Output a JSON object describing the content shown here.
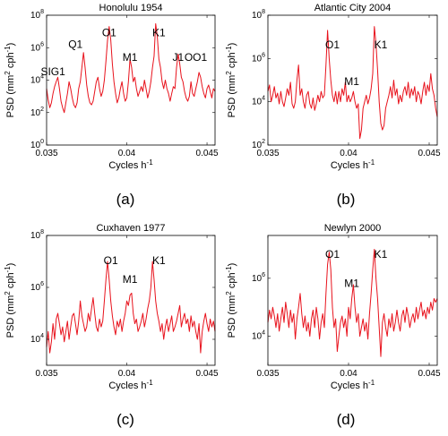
{
  "figure": {
    "panel_letters": [
      "(a)",
      "(b)",
      "(c)",
      "(d)"
    ]
  },
  "chart_data": [
    {
      "type": "line",
      "title": "Honolulu 1954",
      "xlabel": "Cycles h",
      "xlabel_sup": "-1",
      "ylabel": "PSD (mm",
      "ylabel_sup1": "2",
      "ylabel_mid": " cph",
      "ylabel_sup2": "-1",
      "ylabel_end": ")",
      "xlim": [
        0.035,
        0.0455
      ],
      "ylim": [
        1,
        100000000
      ],
      "yscale": "log",
      "xticks": [
        0.035,
        0.04,
        0.045
      ],
      "xtick_labels": [
        "0.035",
        "0.04",
        "0.045"
      ],
      "yticks": [
        1,
        100,
        10000,
        1000000,
        100000000
      ],
      "ytick_labels": [
        [
          "10",
          "0"
        ],
        [
          "10",
          "2"
        ],
        [
          "10",
          "4"
        ],
        [
          "10",
          "6"
        ],
        [
          "10",
          "8"
        ]
      ],
      "series_color": "#e8121c",
      "annotations": [
        {
          "text": "SIG1",
          "x": 0.0354,
          "y": 20000
        },
        {
          "text": "Q1",
          "x": 0.0368,
          "y": 1000000
        },
        {
          "text": "O1",
          "x": 0.0389,
          "y": 5000000
        },
        {
          "text": "M1",
          "x": 0.0402,
          "y": 150000
        },
        {
          "text": "K1",
          "x": 0.042,
          "y": 5000000
        },
        {
          "text": "J1",
          "x": 0.0432,
          "y": 150000
        },
        {
          "text": "OO1",
          "x": 0.0443,
          "y": 150000
        }
      ],
      "x": [
        0.035,
        0.0351,
        0.0352,
        0.0353,
        0.0354,
        0.0355,
        0.0356,
        0.0357,
        0.0358,
        0.0359,
        0.036,
        0.0361,
        0.0362,
        0.0363,
        0.0364,
        0.0365,
        0.0366,
        0.0367,
        0.0368,
        0.0369,
        0.037,
        0.0371,
        0.0372,
        0.0373,
        0.0374,
        0.0375,
        0.0376,
        0.0377,
        0.0378,
        0.0379,
        0.038,
        0.0381,
        0.0382,
        0.0383,
        0.0384,
        0.0385,
        0.0386,
        0.0387,
        0.0388,
        0.0389,
        0.039,
        0.0391,
        0.0392,
        0.0393,
        0.0394,
        0.0395,
        0.0396,
        0.0397,
        0.0398,
        0.0399,
        0.04,
        0.0401,
        0.0402,
        0.0403,
        0.0404,
        0.0405,
        0.0406,
        0.0407,
        0.0408,
        0.0409,
        0.041,
        0.0411,
        0.0412,
        0.0413,
        0.0414,
        0.0415,
        0.0416,
        0.0417,
        0.0418,
        0.0419,
        0.042,
        0.0421,
        0.0422,
        0.0423,
        0.0424,
        0.0425,
        0.0426,
        0.0427,
        0.0428,
        0.0429,
        0.043,
        0.0431,
        0.0432,
        0.0433,
        0.0434,
        0.0435,
        0.0436,
        0.0437,
        0.0438,
        0.0439,
        0.044,
        0.0441,
        0.0442,
        0.0443,
        0.0444,
        0.0445,
        0.0446,
        0.0447,
        0.0448,
        0.0449,
        0.045,
        0.0451,
        0.0452,
        0.0453,
        0.0454,
        0.0455
      ],
      "y": [
        3000,
        600,
        200,
        400,
        1500,
        4000,
        8000,
        15000,
        3000,
        500,
        200,
        100,
        400,
        1500,
        8000,
        3000,
        800,
        300,
        200,
        400,
        3000,
        8000,
        60000,
        500000,
        60000,
        5000,
        1000,
        400,
        300,
        500,
        2000,
        8000,
        15000,
        3000,
        1000,
        2000,
        10000,
        150000,
        3000000,
        20000000,
        3000000,
        100000,
        8000,
        1500,
        400,
        800,
        3000,
        8000,
        1500,
        500,
        800,
        8000,
        200000,
        60000,
        8000,
        15000,
        3000,
        1000,
        2000,
        4000,
        2000,
        10000,
        3000,
        800,
        2000,
        8000,
        60000,
        300000,
        30000000,
        5000000,
        200000,
        60000,
        8000,
        3000,
        10000,
        3000,
        1500,
        500,
        1500,
        4000,
        3000,
        60000,
        400000,
        100000,
        15000,
        8000,
        2000,
        800,
        500,
        1000,
        8000,
        1500,
        1000,
        3000,
        8000,
        30000,
        15000,
        4000,
        1500,
        800,
        3000,
        5000,
        2000,
        800,
        3000,
        2000
      ]
    },
    {
      "type": "line",
      "title": "Atlantic City 2004",
      "xlabel": "Cycles h",
      "xlabel_sup": "-1",
      "ylabel": "PSD (mm",
      "ylabel_sup1": "2",
      "ylabel_mid": " cph",
      "ylabel_sup2": "-1",
      "ylabel_end": ")",
      "xlim": [
        0.035,
        0.0455
      ],
      "ylim": [
        100,
        100000000
      ],
      "yscale": "log",
      "xticks": [
        0.035,
        0.04,
        0.045
      ],
      "xtick_labels": [
        "0.035",
        "0.04",
        "0.045"
      ],
      "yticks": [
        100,
        10000,
        1000000,
        100000000
      ],
      "ytick_labels": [
        [
          "10",
          "2"
        ],
        [
          "10",
          "4"
        ],
        [
          "10",
          "6"
        ],
        [
          "10",
          "8"
        ]
      ],
      "series_color": "#e8121c",
      "annotations": [
        {
          "text": "O1",
          "x": 0.039,
          "y": 3000000
        },
        {
          "text": "M1",
          "x": 0.0402,
          "y": 60000
        },
        {
          "text": "K1",
          "x": 0.042,
          "y": 3000000
        }
      ],
      "x": [
        0.035,
        0.0351,
        0.0352,
        0.0353,
        0.0354,
        0.0355,
        0.0356,
        0.0357,
        0.0358,
        0.0359,
        0.036,
        0.0361,
        0.0362,
        0.0363,
        0.0364,
        0.0365,
        0.0366,
        0.0367,
        0.0368,
        0.0369,
        0.037,
        0.0371,
        0.0372,
        0.0373,
        0.0374,
        0.0375,
        0.0376,
        0.0377,
        0.0378,
        0.0379,
        0.038,
        0.0381,
        0.0382,
        0.0383,
        0.0384,
        0.0385,
        0.0386,
        0.0387,
        0.0388,
        0.0389,
        0.039,
        0.0391,
        0.0392,
        0.0393,
        0.0394,
        0.0395,
        0.0396,
        0.0397,
        0.0398,
        0.0399,
        0.04,
        0.0401,
        0.0402,
        0.0403,
        0.0404,
        0.0405,
        0.0406,
        0.0407,
        0.0408,
        0.0409,
        0.041,
        0.0411,
        0.0412,
        0.0413,
        0.0414,
        0.0415,
        0.0416,
        0.0417,
        0.0418,
        0.0419,
        0.042,
        0.0421,
        0.0422,
        0.0423,
        0.0424,
        0.0425,
        0.0426,
        0.0427,
        0.0428,
        0.0429,
        0.043,
        0.0431,
        0.0432,
        0.0433,
        0.0434,
        0.0435,
        0.0436,
        0.0437,
        0.0438,
        0.0439,
        0.044,
        0.0441,
        0.0442,
        0.0443,
        0.0444,
        0.0445,
        0.0446,
        0.0447,
        0.0448,
        0.0449,
        0.045,
        0.0451,
        0.0452,
        0.0453,
        0.0454,
        0.0455
      ],
      "y": [
        30000,
        60000,
        10000,
        20000,
        50000,
        15000,
        25000,
        8000,
        30000,
        10000,
        6000,
        15000,
        40000,
        20000,
        80000,
        8000,
        5000,
        10000,
        100000,
        500000,
        20000,
        40000,
        10000,
        5000,
        20000,
        30000,
        8000,
        5000,
        15000,
        4000,
        8000,
        20000,
        10000,
        30000,
        15000,
        20000,
        500000,
        20000000,
        1000000,
        100000,
        20000,
        10000,
        30000,
        8000,
        30000,
        10000,
        40000,
        20000,
        80000,
        10000,
        20000,
        10000,
        15000,
        30000,
        10000,
        5000,
        8000,
        200,
        500,
        5000,
        10000,
        20000,
        8000,
        15000,
        40000,
        200000,
        30000000,
        5000000,
        300000,
        10000,
        1000,
        500,
        800,
        5000,
        10000,
        20000,
        50000,
        15000,
        100000,
        20000,
        40000,
        8000,
        20000,
        10000,
        30000,
        50000,
        20000,
        80000,
        15000,
        40000,
        20000,
        50000,
        10000,
        30000,
        20000,
        8000,
        30000,
        80000,
        20000,
        60000,
        30000,
        200000,
        40000,
        20000,
        5000,
        2000
      ]
    },
    {
      "type": "line",
      "title": "Cuxhaven 1977",
      "xlabel": "Cycles h",
      "xlabel_sup": "-1",
      "ylabel": "PSD (mm",
      "ylabel_sup1": "2",
      "ylabel_mid": " cph",
      "ylabel_sup2": "-1",
      "ylabel_end": ")",
      "xlim": [
        0.035,
        0.0455
      ],
      "ylim": [
        1000,
        100000000
      ],
      "yscale": "log",
      "xticks": [
        0.035,
        0.04,
        0.045
      ],
      "xtick_labels": [
        "0.035",
        "0.04",
        "0.045"
      ],
      "yticks": [
        10000,
        1000000,
        100000000
      ],
      "ytick_labels": [
        [
          "10",
          "4"
        ],
        [
          "10",
          "6"
        ],
        [
          "10",
          "8"
        ]
      ],
      "series_color": "#e8121c",
      "annotations": [
        {
          "text": "O1",
          "x": 0.039,
          "y": 8000000
        },
        {
          "text": "M1",
          "x": 0.0402,
          "y": 1500000
        },
        {
          "text": "K1",
          "x": 0.042,
          "y": 8000000
        }
      ],
      "x": [
        0.035,
        0.0351,
        0.0352,
        0.0353,
        0.0354,
        0.0355,
        0.0356,
        0.0357,
        0.0358,
        0.0359,
        0.036,
        0.0361,
        0.0362,
        0.0363,
        0.0364,
        0.0365,
        0.0366,
        0.0367,
        0.0368,
        0.0369,
        0.037,
        0.0371,
        0.0372,
        0.0373,
        0.0374,
        0.0375,
        0.0376,
        0.0377,
        0.0378,
        0.0379,
        0.038,
        0.0381,
        0.0382,
        0.0383,
        0.0384,
        0.0385,
        0.0386,
        0.0387,
        0.0388,
        0.0389,
        0.039,
        0.0391,
        0.0392,
        0.0393,
        0.0394,
        0.0395,
        0.0396,
        0.0397,
        0.0398,
        0.0399,
        0.04,
        0.0401,
        0.0402,
        0.0403,
        0.0404,
        0.0405,
        0.0406,
        0.0407,
        0.0408,
        0.0409,
        0.041,
        0.0411,
        0.0412,
        0.0413,
        0.0414,
        0.0415,
        0.0416,
        0.0417,
        0.0418,
        0.0419,
        0.042,
        0.0421,
        0.0422,
        0.0423,
        0.0424,
        0.0425,
        0.0426,
        0.0427,
        0.0428,
        0.0429,
        0.043,
        0.0431,
        0.0432,
        0.0433,
        0.0434,
        0.0435,
        0.0436,
        0.0437,
        0.0438,
        0.0439,
        0.044,
        0.0441,
        0.0442,
        0.0443,
        0.0444,
        0.0445,
        0.0446,
        0.0447,
        0.0448,
        0.0449,
        0.045,
        0.0451,
        0.0452,
        0.0453,
        0.0454,
        0.0455
      ],
      "y": [
        5000,
        20000,
        3000,
        8000,
        40000,
        10000,
        60000,
        100000,
        40000,
        15000,
        30000,
        8000,
        20000,
        50000,
        10000,
        30000,
        80000,
        100000,
        40000,
        15000,
        50000,
        300000,
        80000,
        40000,
        20000,
        30000,
        100000,
        50000,
        150000,
        400000,
        100000,
        30000,
        20000,
        60000,
        30000,
        50000,
        300000,
        2000000,
        10000000,
        2000000,
        300000,
        80000,
        30000,
        15000,
        50000,
        30000,
        60000,
        20000,
        50000,
        100000,
        300000,
        200000,
        500000,
        600000,
        100000,
        40000,
        60000,
        20000,
        30000,
        50000,
        100000,
        30000,
        60000,
        150000,
        300000,
        1000000,
        10000000,
        2000000,
        300000,
        100000,
        50000,
        20000,
        40000,
        10000,
        30000,
        60000,
        20000,
        40000,
        80000,
        20000,
        30000,
        50000,
        100000,
        200000,
        30000,
        60000,
        100000,
        40000,
        60000,
        20000,
        80000,
        30000,
        50000,
        20000,
        10000,
        40000,
        3000,
        20000,
        50000,
        100000,
        40000,
        20000,
        60000,
        30000,
        50000,
        20000
      ]
    },
    {
      "type": "line",
      "title": "Newlyn 2000",
      "xlabel": "Cycles h",
      "xlabel_sup": "-1",
      "ylabel": "PSD (mm",
      "ylabel_sup1": "2",
      "ylabel_mid": " cph",
      "ylabel_sup2": "-1",
      "ylabel_end": ")",
      "xlim": [
        0.035,
        0.0455
      ],
      "ylim": [
        1000,
        30000000
      ],
      "yscale": "log",
      "xticks": [
        0.035,
        0.04,
        0.045
      ],
      "xtick_labels": [
        "0.035",
        "0.04",
        "0.045"
      ],
      "yticks": [
        10000,
        1000000
      ],
      "ytick_labels": [
        [
          "10",
          "4"
        ],
        [
          "10",
          "6"
        ]
      ],
      "series_color": "#e8121c",
      "annotations": [
        {
          "text": "O1",
          "x": 0.039,
          "y": 5000000
        },
        {
          "text": "M1",
          "x": 0.0402,
          "y": 500000
        },
        {
          "text": "K1",
          "x": 0.042,
          "y": 5000000
        }
      ],
      "x": [
        0.035,
        0.0351,
        0.0352,
        0.0353,
        0.0354,
        0.0355,
        0.0356,
        0.0357,
        0.0358,
        0.0359,
        0.036,
        0.0361,
        0.0362,
        0.0363,
        0.0364,
        0.0365,
        0.0366,
        0.0367,
        0.0368,
        0.0369,
        0.037,
        0.0371,
        0.0372,
        0.0373,
        0.0374,
        0.0375,
        0.0376,
        0.0377,
        0.0378,
        0.0379,
        0.038,
        0.0381,
        0.0382,
        0.0383,
        0.0384,
        0.0385,
        0.0386,
        0.0387,
        0.0388,
        0.0389,
        0.039,
        0.0391,
        0.0392,
        0.0393,
        0.0394,
        0.0395,
        0.0396,
        0.0397,
        0.0398,
        0.0399,
        0.04,
        0.0401,
        0.0402,
        0.0403,
        0.0404,
        0.0405,
        0.0406,
        0.0407,
        0.0408,
        0.0409,
        0.041,
        0.0411,
        0.0412,
        0.0413,
        0.0414,
        0.0415,
        0.0416,
        0.0417,
        0.0418,
        0.0419,
        0.042,
        0.0421,
        0.0422,
        0.0423,
        0.0424,
        0.0425,
        0.0426,
        0.0427,
        0.0428,
        0.0429,
        0.043,
        0.0431,
        0.0432,
        0.0433,
        0.0434,
        0.0435,
        0.0436,
        0.0437,
        0.0438,
        0.0439,
        0.044,
        0.0441,
        0.0442,
        0.0443,
        0.0444,
        0.0445,
        0.0446,
        0.0447,
        0.0448,
        0.0449,
        0.045,
        0.0451,
        0.0452,
        0.0453,
        0.0454,
        0.0455
      ],
      "y": [
        30000,
        80000,
        40000,
        100000,
        50000,
        20000,
        60000,
        15000,
        40000,
        100000,
        30000,
        150000,
        60000,
        20000,
        80000,
        30000,
        60000,
        8000,
        40000,
        100000,
        300000,
        60000,
        20000,
        50000,
        15000,
        30000,
        10000,
        40000,
        80000,
        20000,
        100000,
        40000,
        8000,
        30000,
        60000,
        20000,
        300000,
        3000000,
        8000000,
        2000000,
        100000,
        20000,
        40000,
        3000,
        10000,
        30000,
        50000,
        20000,
        40000,
        10000,
        100000,
        40000,
        200000,
        600000,
        100000,
        30000,
        60000,
        10000,
        20000,
        40000,
        15000,
        30000,
        8000,
        60000,
        300000,
        2000000,
        10000000,
        1000000,
        200000,
        20000,
        2000,
        30000,
        60000,
        20000,
        10000,
        40000,
        20000,
        60000,
        15000,
        30000,
        80000,
        30000,
        15000,
        50000,
        80000,
        30000,
        100000,
        50000,
        20000,
        40000,
        60000,
        30000,
        100000,
        40000,
        80000,
        150000,
        50000,
        80000,
        40000,
        100000,
        60000,
        150000,
        80000,
        200000,
        150000,
        200000
      ]
    }
  ]
}
